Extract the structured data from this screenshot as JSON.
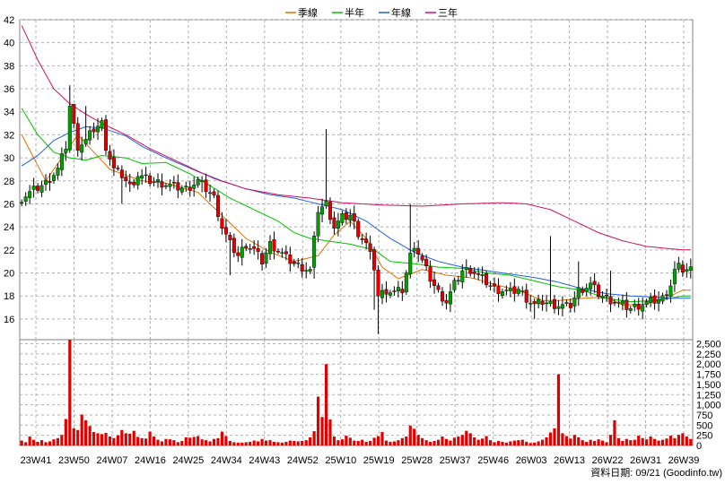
{
  "chart_data": [
    {
      "type": "candlestick",
      "panel": "price",
      "legend": [
        {
          "name": "季線",
          "color": "#e07000"
        },
        {
          "name": "半年",
          "color": "#00c000"
        },
        {
          "name": "年線",
          "color": "#2060e0"
        },
        {
          "name": "三年",
          "color": "#d01060"
        }
      ],
      "x_ticks": [
        "23W41",
        "23W50",
        "24W07",
        "24W16",
        "24W25",
        "24W34",
        "24W43",
        "24W52",
        "25W10",
        "25W19",
        "25W28",
        "25W37",
        "25W46",
        "26W03",
        "26W13",
        "26W22",
        "26W31",
        "26W39"
      ],
      "y_ticks": [
        16,
        18,
        20,
        22,
        24,
        26,
        28,
        30,
        32,
        34,
        36,
        38,
        40,
        42
      ],
      "ylim": [
        14.2,
        42
      ],
      "grid": true,
      "up_color": "#00a000",
      "down_color": "#e00000",
      "close_anchors": [
        [
          0,
          26.5
        ],
        [
          3,
          27.2
        ],
        [
          6,
          27.8
        ],
        [
          9,
          29
        ],
        [
          11,
          31
        ],
        [
          12,
          34.5
        ],
        [
          14,
          31
        ],
        [
          16,
          31.5
        ],
        [
          18,
          32.5
        ],
        [
          20,
          33
        ],
        [
          21,
          31
        ],
        [
          23,
          29
        ],
        [
          25,
          28.5
        ],
        [
          27,
          27.5
        ],
        [
          29,
          28.5
        ],
        [
          32,
          28
        ],
        [
          35,
          27.8
        ],
        [
          38,
          27.5
        ],
        [
          41,
          27.3
        ],
        [
          44,
          28
        ],
        [
          46,
          27.3
        ],
        [
          48,
          26.5
        ],
        [
          50,
          24
        ],
        [
          52,
          22.5
        ],
        [
          54,
          21.5
        ],
        [
          56,
          22.5
        ],
        [
          58,
          22
        ],
        [
          60,
          21
        ],
        [
          62,
          22.5
        ],
        [
          64,
          22
        ],
        [
          66,
          21.3
        ],
        [
          68,
          20.8
        ],
        [
          70,
          20.5
        ],
        [
          72,
          20.2
        ],
        [
          74,
          25.5
        ],
        [
          76,
          26
        ],
        [
          78,
          24
        ],
        [
          80,
          24.8
        ],
        [
          82,
          25
        ],
        [
          84,
          23.5
        ],
        [
          86,
          22.5
        ],
        [
          88,
          20.5
        ],
        [
          89,
          18
        ],
        [
          91,
          18.5
        ],
        [
          93,
          18.3
        ],
        [
          95,
          18.5
        ],
        [
          97,
          21.5
        ],
        [
          98,
          22.5
        ],
        [
          100,
          21
        ],
        [
          102,
          19.5
        ],
        [
          104,
          18.3
        ],
        [
          106,
          17.5
        ],
        [
          108,
          19
        ],
        [
          110,
          20.2
        ],
        [
          112,
          20.3
        ],
        [
          114,
          19.8
        ],
        [
          116,
          19.2
        ],
        [
          118,
          18.6
        ],
        [
          120,
          18.5
        ],
        [
          122,
          18.3
        ],
        [
          124,
          18.6
        ],
        [
          126,
          17.8
        ],
        [
          128,
          17.2
        ],
        [
          130,
          17.5
        ],
        [
          132,
          17.3
        ],
        [
          134,
          17.2
        ],
        [
          136,
          17.1
        ],
        [
          137,
          17.2
        ],
        [
          139,
          18.5
        ],
        [
          141,
          18.8
        ],
        [
          142,
          19
        ],
        [
          144,
          18.2
        ],
        [
          146,
          17.8
        ],
        [
          148,
          17.5
        ],
        [
          150,
          17.2
        ],
        [
          152,
          16.9
        ],
        [
          154,
          17.2
        ],
        [
          156,
          17.4
        ],
        [
          158,
          17.6
        ],
        [
          160,
          17.8
        ],
        [
          162,
          19
        ],
        [
          163,
          20.2
        ],
        [
          164,
          20.5
        ],
        [
          165,
          20.3
        ]
      ],
      "spikes": [
        [
          12,
          36.3,
          "high"
        ],
        [
          13,
          34,
          "high"
        ],
        [
          16,
          34.5,
          "high"
        ],
        [
          25,
          26,
          "low"
        ],
        [
          45,
          27,
          "low"
        ],
        [
          52,
          19.8,
          "low"
        ],
        [
          60,
          20.2,
          "low"
        ],
        [
          73,
          19.5,
          "low"
        ],
        [
          76,
          32.5,
          "high"
        ],
        [
          88,
          16.8,
          "low"
        ],
        [
          89,
          14.7,
          "low"
        ],
        [
          97,
          26,
          "high"
        ],
        [
          128,
          16,
          "low"
        ],
        [
          132,
          23.2,
          "high"
        ],
        [
          139,
          21,
          "high"
        ],
        [
          147,
          20.2,
          "high"
        ],
        [
          164,
          21.4,
          "high"
        ]
      ],
      "ma_quarter": [
        [
          0,
          32
        ],
        [
          3,
          30
        ],
        [
          6,
          28
        ],
        [
          10,
          30
        ],
        [
          14,
          32
        ],
        [
          18,
          30.5
        ],
        [
          22,
          29
        ],
        [
          30,
          28
        ],
        [
          36,
          27.8
        ],
        [
          44,
          27
        ],
        [
          50,
          25
        ],
        [
          56,
          23
        ],
        [
          62,
          21.8
        ],
        [
          68,
          21
        ],
        [
          74,
          21.5
        ],
        [
          78,
          23.3
        ],
        [
          82,
          24.5
        ],
        [
          86,
          23
        ],
        [
          90,
          20.5
        ],
        [
          94,
          19.5
        ],
        [
          100,
          20.3
        ],
        [
          106,
          19.8
        ],
        [
          112,
          19.6
        ],
        [
          118,
          19
        ],
        [
          124,
          18.5
        ],
        [
          130,
          17.6
        ],
        [
          134,
          17.6
        ],
        [
          140,
          17.8
        ],
        [
          146,
          17.9
        ],
        [
          150,
          17.2
        ],
        [
          156,
          17.3
        ],
        [
          162,
          18
        ],
        [
          165,
          18.5
        ]
      ],
      "ma_half": [
        [
          0,
          34.3
        ],
        [
          4,
          32
        ],
        [
          8,
          30.5
        ],
        [
          12,
          30
        ],
        [
          16,
          29.8
        ],
        [
          20,
          30.2
        ],
        [
          26,
          30
        ],
        [
          30,
          29.5
        ],
        [
          36,
          29.6
        ],
        [
          42,
          28.6
        ],
        [
          46,
          27.8
        ],
        [
          52,
          26.5
        ],
        [
          58,
          25.5
        ],
        [
          64,
          24.5
        ],
        [
          68,
          23.5
        ],
        [
          72,
          23
        ],
        [
          76,
          22.8
        ],
        [
          82,
          22.5
        ],
        [
          88,
          22
        ],
        [
          92,
          21
        ],
        [
          98,
          20.8
        ],
        [
          104,
          20.5
        ],
        [
          110,
          20.4
        ],
        [
          116,
          20
        ],
        [
          122,
          19.8
        ],
        [
          128,
          19.3
        ],
        [
          134,
          18.8
        ],
        [
          140,
          18.5
        ],
        [
          146,
          17.8
        ],
        [
          152,
          17.5
        ],
        [
          158,
          17.6
        ],
        [
          162,
          17.8
        ],
        [
          165,
          18
        ]
      ],
      "ma_year": [
        [
          0,
          29.3
        ],
        [
          4,
          30.2
        ],
        [
          8,
          31.5
        ],
        [
          12,
          32.2
        ],
        [
          16,
          32.7
        ],
        [
          20,
          32.6
        ],
        [
          26,
          31.9
        ],
        [
          30,
          31
        ],
        [
          36,
          30
        ],
        [
          44,
          28.8
        ],
        [
          50,
          28
        ],
        [
          56,
          27.3
        ],
        [
          62,
          26.8
        ],
        [
          68,
          26.5
        ],
        [
          74,
          26
        ],
        [
          80,
          25.5
        ],
        [
          86,
          24.5
        ],
        [
          92,
          23
        ],
        [
          98,
          21.8
        ],
        [
          104,
          21
        ],
        [
          110,
          20.5
        ],
        [
          116,
          20.2
        ],
        [
          122,
          19.9
        ],
        [
          128,
          19.6
        ],
        [
          134,
          19.2
        ],
        [
          140,
          18.6
        ],
        [
          146,
          18.2
        ],
        [
          152,
          18
        ],
        [
          158,
          17.9
        ],
        [
          162,
          17.8
        ],
        [
          165,
          17.8
        ]
      ],
      "ma_3y": [
        [
          0,
          41.5
        ],
        [
          4,
          38.5
        ],
        [
          8,
          36
        ],
        [
          12,
          34.7
        ],
        [
          16,
          33.8
        ],
        [
          20,
          33
        ],
        [
          26,
          32
        ],
        [
          32,
          30.8
        ],
        [
          40,
          29.5
        ],
        [
          48,
          28.2
        ],
        [
          56,
          27.3
        ],
        [
          64,
          26.8
        ],
        [
          72,
          26.5
        ],
        [
          80,
          26.1
        ],
        [
          90,
          25.9
        ],
        [
          100,
          25.8
        ],
        [
          110,
          26
        ],
        [
          120,
          26.1
        ],
        [
          126,
          26
        ],
        [
          132,
          25.5
        ],
        [
          138,
          24.5
        ],
        [
          144,
          23.5
        ],
        [
          150,
          22.8
        ],
        [
          156,
          22.3
        ],
        [
          162,
          22.1
        ],
        [
          165,
          22
        ]
      ]
    },
    {
      "type": "bar",
      "panel": "volume",
      "y_ticks": [
        "0",
        "250",
        "500",
        "750",
        "1,000",
        "1,250",
        "1,500",
        "1,750",
        "2,000",
        "2,250",
        "2,500"
      ],
      "ylim": [
        0,
        2600
      ],
      "bar_color": "#e00000",
      "values": [
        120,
        80,
        220,
        140,
        90,
        130,
        80,
        100,
        150,
        180,
        260,
        650,
        2600,
        420,
        380,
        760,
        620,
        480,
        330,
        300,
        280,
        310,
        220,
        180,
        250,
        380,
        300,
        290,
        360,
        210,
        180,
        170,
        340,
        220,
        140,
        100,
        160,
        150,
        130,
        80,
        110,
        200,
        190,
        210,
        230,
        150,
        130,
        100,
        160,
        180,
        340,
        230,
        110,
        80,
        70,
        70,
        80,
        90,
        120,
        100,
        160,
        120,
        130,
        90,
        80,
        70,
        90,
        120,
        110,
        100,
        110,
        130,
        200,
        350,
        1200,
        700,
        2000,
        640,
        220,
        130,
        150,
        240,
        190,
        120,
        110,
        140,
        90,
        110,
        190,
        230,
        330,
        120,
        90,
        100,
        130,
        180,
        220,
        490,
        410,
        260,
        180,
        130,
        90,
        110,
        140,
        220,
        160,
        120,
        190,
        220,
        260,
        360,
        300,
        200,
        140,
        170,
        230,
        130,
        80,
        110,
        90,
        70,
        100,
        120,
        130,
        140,
        90,
        60,
        70,
        100,
        140,
        200,
        320,
        420,
        1750,
        300,
        230,
        170,
        260,
        200,
        130,
        90,
        140,
        110,
        150,
        120,
        80,
        260,
        620,
        180,
        110,
        160,
        130,
        140,
        240,
        180,
        150,
        220,
        160,
        120,
        140,
        170,
        240,
        180,
        260,
        300,
        220,
        160
      ]
    }
  ],
  "credit": "資料日期: 09/21 (Goodinfo.tw)"
}
